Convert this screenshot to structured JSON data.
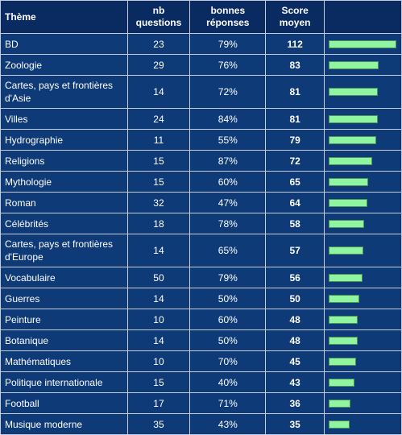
{
  "headers": {
    "theme": "Thème",
    "questions": [
      "nb",
      "questions"
    ],
    "correct": [
      "bonnes",
      "réponses"
    ],
    "score": [
      "Score",
      "moyen"
    ]
  },
  "colors": {
    "header_bg": "#0a2a62",
    "row_bg": "#0e3a77",
    "grid": "#c8ccd8",
    "bar_fill": "#8ff5a1",
    "bar_border": "#4e8f5c"
  },
  "rows": [
    {
      "theme": "BD",
      "questions": "23",
      "correct": "79%",
      "score": 112
    },
    {
      "theme": "Zoologie",
      "questions": "29",
      "correct": "76%",
      "score": 83
    },
    {
      "theme": "Cartes, pays et frontières d'Asie",
      "questions": "14",
      "correct": "72%",
      "score": 81
    },
    {
      "theme": "Villes",
      "questions": "24",
      "correct": "84%",
      "score": 81
    },
    {
      "theme": "Hydrographie",
      "questions": "11",
      "correct": "55%",
      "score": 79
    },
    {
      "theme": "Religions",
      "questions": "15",
      "correct": "87%",
      "score": 72
    },
    {
      "theme": "Mythologie",
      "questions": "15",
      "correct": "60%",
      "score": 65
    },
    {
      "theme": "Roman",
      "questions": "32",
      "correct": "47%",
      "score": 64
    },
    {
      "theme": "Célébrités",
      "questions": "18",
      "correct": "78%",
      "score": 58
    },
    {
      "theme": "Cartes, pays et frontières d'Europe",
      "questions": "14",
      "correct": "65%",
      "score": 57
    },
    {
      "theme": "Vocabulaire",
      "questions": "50",
      "correct": "79%",
      "score": 56
    },
    {
      "theme": "Guerres",
      "questions": "14",
      "correct": "50%",
      "score": 50
    },
    {
      "theme": "Peinture",
      "questions": "10",
      "correct": "60%",
      "score": 48
    },
    {
      "theme": "Botanique",
      "questions": "14",
      "correct": "50%",
      "score": 48
    },
    {
      "theme": "Mathématiques",
      "questions": "10",
      "correct": "70%",
      "score": 45
    },
    {
      "theme": "Politique internationale",
      "questions": "15",
      "correct": "40%",
      "score": 43
    },
    {
      "theme": "Football",
      "questions": "17",
      "correct": "71%",
      "score": 36
    },
    {
      "theme": "Musique moderne",
      "questions": "35",
      "correct": "43%",
      "score": 35
    }
  ]
}
